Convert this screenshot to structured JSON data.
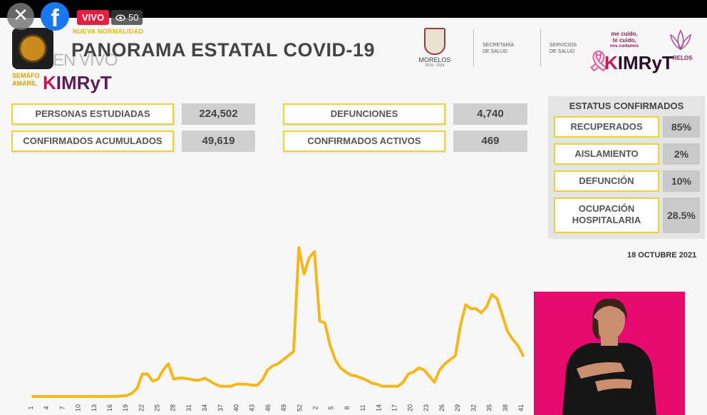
{
  "overlay": {
    "close_glyph": "✕",
    "fb_glyph": "f",
    "live_label": "VIVO",
    "viewer_count": "50"
  },
  "header": {
    "tag": "NUEVA NORMALIDAD",
    "semaforo_label_1": "SEMÁFO",
    "semaforo_label_2": "AMARIL",
    "envivo": "EN VIVO",
    "brand_prefix": "K",
    "brand": "IMRyT",
    "title": "PANORAMA ESTATAL COVID-19",
    "morelos_name": "MORELOS",
    "morelos_years": "2018 - 2024",
    "secretaria_1": "SECRETARÍA",
    "secretaria_2": "DE SALUD",
    "servicios_1": "SERVICIOS",
    "servicios_2": "DE SALUD",
    "slogan_1": "me cuido,",
    "slogan_2": "te cuido,",
    "slogan_3": "nos cuidamos",
    "ribbon_glyph": "🎗",
    "relos": "RELOS"
  },
  "stats": {
    "personas_label": "PERSONAS ESTUDIADAS",
    "personas_value": "224,502",
    "confirmados_label": "CONFIRMADOS ACUMULADOS",
    "confirmados_value": "49,619",
    "defunciones_label": "DEFUNCIONES",
    "defunciones_value": "4,740",
    "activos_label": "CONFIRMADOS ACTIVOS",
    "activos_value": "469"
  },
  "status": {
    "title": "ESTATUS CONFIRMADOS",
    "rows": [
      {
        "label": "RECUPERADOS",
        "value": "85%"
      },
      {
        "label": "AISLAMIENTO",
        "value": "2%"
      },
      {
        "label": "DEFUNCIÓN",
        "value": "10%"
      },
      {
        "label_1": "OCUPACIÓN",
        "label_2": "HOSPITALARIA",
        "value": "28.5%"
      }
    ]
  },
  "date": "18 OCTUBRE 2021",
  "colors": {
    "line": "#f5b81c",
    "accent_border": "#f2d230",
    "interpreter_bg": "#e8096f"
  },
  "chart_data": {
    "type": "line",
    "title": "",
    "xlabel": "",
    "ylabel": "",
    "x_ticks": [
      "1",
      "4",
      "7",
      "10",
      "13",
      "16",
      "19",
      "22",
      "25",
      "28",
      "31",
      "34",
      "37",
      "40",
      "43",
      "46",
      "49",
      "52",
      "2",
      "5",
      "8",
      "11",
      "14",
      "17",
      "20",
      "23",
      "26",
      "29",
      "32",
      "35",
      "38",
      "41"
    ],
    "values": [
      0,
      0,
      0,
      0,
      0,
      0,
      0,
      0,
      0,
      0,
      0,
      0,
      0,
      0,
      0,
      0,
      0,
      0.2,
      0.5,
      1.5,
      4,
      11,
      11,
      7.5,
      8.5,
      13,
      16,
      8.5,
      9,
      9,
      8.5,
      8,
      8,
      9,
      7.5,
      6,
      5,
      5,
      5,
      6,
      6,
      6,
      5.5,
      5.5,
      8,
      13,
      15,
      16,
      18,
      20,
      22,
      73,
      60,
      68,
      71,
      37,
      36,
      25,
      18,
      14,
      12,
      10.5,
      10,
      9,
      8,
      6.5,
      6,
      5,
      5,
      5,
      5,
      7,
      11,
      12,
      14,
      13,
      10,
      7,
      13,
      16,
      18,
      20,
      35,
      45,
      43,
      43,
      41,
      44,
      50,
      48,
      40,
      32,
      28,
      25,
      20
    ],
    "ylim": [
      0,
      100
    ],
    "grid": false,
    "legend": "none"
  }
}
